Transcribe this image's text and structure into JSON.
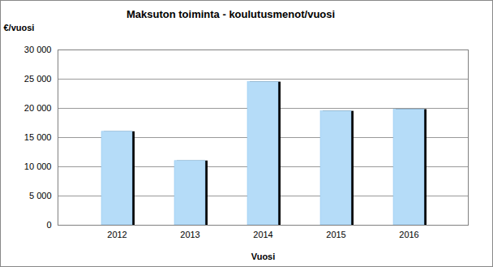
{
  "chart_data": {
    "type": "bar",
    "title": "Maksuton toiminta - koulutusmenot/vuosi",
    "x_label": "Vuosi",
    "y_label": "€/vuosi",
    "categories": [
      "2012",
      "2013",
      "2014",
      "2015",
      "2016"
    ],
    "values": [
      16000,
      11000,
      24500,
      19500,
      19800
    ],
    "color": "#b5dcf8",
    "ylim": [
      0,
      30000
    ],
    "yticks": [
      0,
      {
        "value": 5000,
        "label": "5 000"
      },
      {
        "value": 10000,
        "label": "10 000"
      },
      {
        "value": 15000,
        "label": "15 000"
      },
      {
        "value": 20000,
        "label": "20 000"
      },
      {
        "value": 25000,
        "label": "25 000"
      },
      {
        "value": 30000,
        "label": "30 000"
      }
    ],
    "grid": true
  }
}
